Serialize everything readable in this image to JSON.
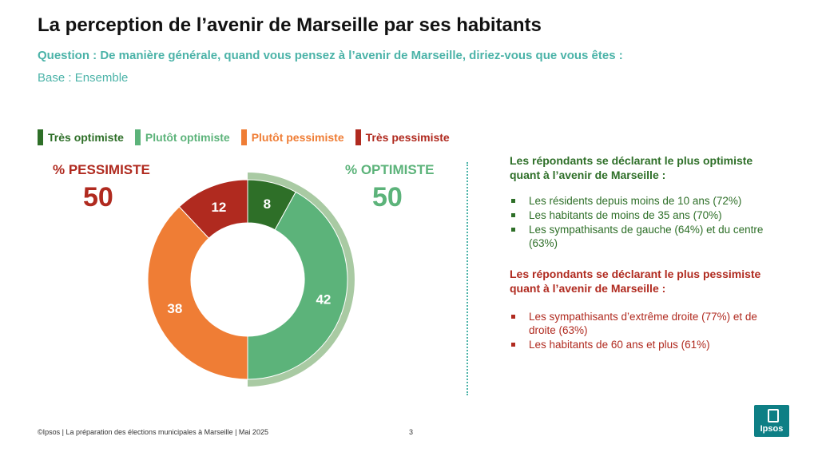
{
  "header": {
    "title": "La perception de l’avenir de Marseille par ses habitants",
    "question": "Question : De manière générale, quand vous pensez à l’avenir de Marseille, diriez-vous que vous êtes :",
    "base": "Base : Ensemble"
  },
  "colors": {
    "tres_optimiste": "#2e6f28",
    "plutot_optimiste": "#5cb37a",
    "plutot_pessimiste": "#ef7d35",
    "tres_pessimiste": "#b02a1f",
    "optimiste_outer_ring": "#a9caa3",
    "accent_teal": "#4bb3a8"
  },
  "chart_data": {
    "type": "pie",
    "variant": "donut",
    "categories": [
      "Très optimiste",
      "Plutôt optimiste",
      "Plutôt pessimiste",
      "Très pessimiste"
    ],
    "values": [
      8,
      42,
      38,
      12
    ],
    "legend_position": "top",
    "summary": {
      "pessimiste_label": "% PESSIMISTE",
      "pessimiste_value": 50,
      "optimiste_label": "% OPTIMISTE",
      "optimiste_value": 50
    }
  },
  "panel": {
    "optimist_heading": "Les répondants se déclarant le plus optimiste quant à l’avenir de Marseille :",
    "optimist_items": [
      "Les résidents depuis moins de 10 ans (72%)",
      "Les habitants de moins de 35 ans (70%)",
      "Les sympathisants de gauche (64%) et du centre (63%)"
    ],
    "pessimist_heading": "Les répondants se déclarant le plus pessimiste quant à l’avenir de Marseille :",
    "pessimist_items": [
      "Les sympathisants d’extrême droite (77%) et de droite (63%)",
      "Les habitants de 60 ans et plus (61%)"
    ]
  },
  "footer": {
    "source": "©Ipsos | La préparation des élections municipales à Marseille | Mai 2025",
    "page_number": "3",
    "logo_text": "Ipsos"
  }
}
